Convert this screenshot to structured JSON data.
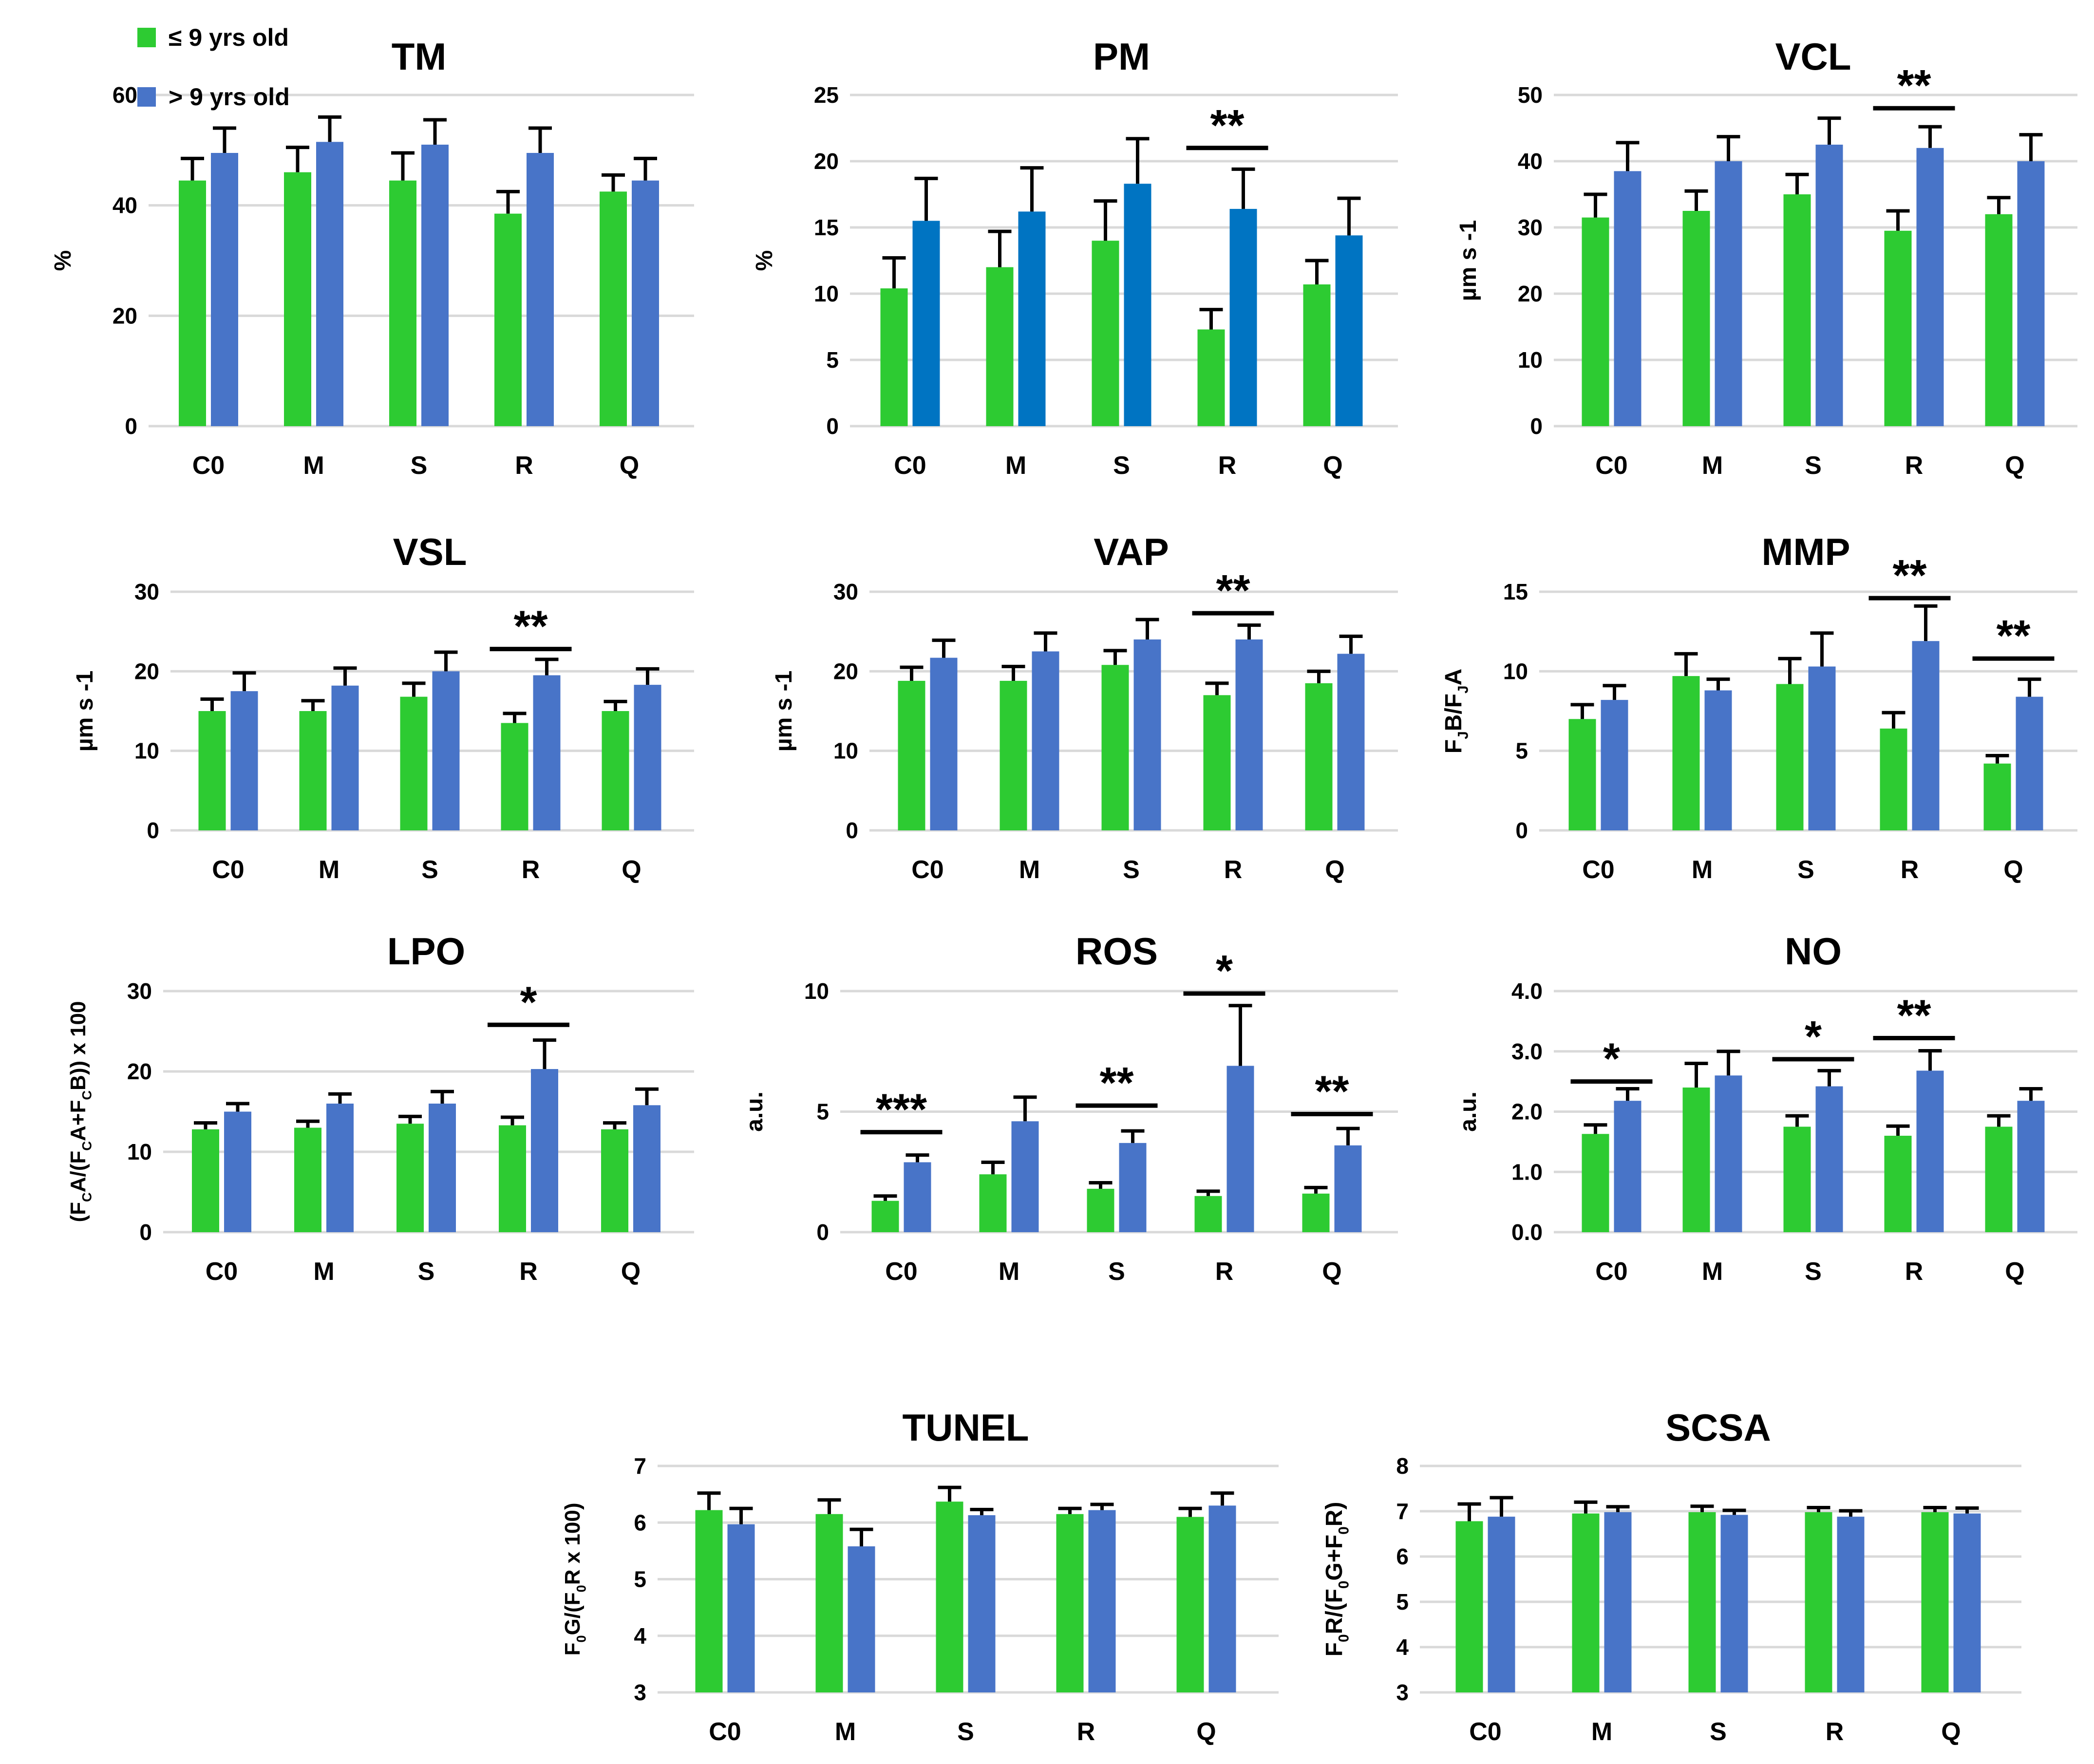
{
  "figure": {
    "background": "#FFFFFF"
  },
  "colors": {
    "green": "#2DCB32",
    "blue": "#4874C8",
    "blue_bright": "#0074C2",
    "gridline": "#D9D9D9",
    "error_bar": "#000000",
    "text": "#000000"
  },
  "legend": {
    "position": "top-left",
    "items": [
      {
        "label": "≤ 9 yrs old",
        "color": "#2DCB32"
      },
      {
        "label": "> 9 yrs old",
        "color": "#4874C8"
      }
    ]
  },
  "categories": [
    "C0",
    "M",
    "S",
    "R",
    "Q"
  ],
  "chart_data": [
    {
      "key": "TM",
      "type": "bar",
      "title": "TM",
      "ylabel": "%",
      "ymin": 0,
      "ymax": 60,
      "grid": true,
      "yticks": [
        {
          "v": 0,
          "label": "0"
        },
        {
          "v": 20,
          "label": "20"
        },
        {
          "v": 40,
          "label": "40"
        },
        {
          "v": 60,
          "label": "60"
        }
      ],
      "categories": [
        "C0",
        "M",
        "S",
        "R",
        "Q"
      ],
      "series": [
        {
          "name": "≤ 9 yrs old",
          "color": "#2DCB32",
          "values": [
            44.5,
            46,
            44.5,
            38.5,
            42.5
          ],
          "errors_up": [
            4,
            4.5,
            5,
            4,
            3
          ]
        },
        {
          "name": "> 9 yrs old",
          "color": "#4874C8",
          "values": [
            49.5,
            51.5,
            51,
            49.5,
            44.5
          ],
          "errors_up": [
            4.5,
            4.5,
            4.5,
            4.5,
            4
          ]
        }
      ],
      "significance": []
    },
    {
      "key": "PM",
      "type": "bar",
      "title": "PM",
      "ylabel": "%",
      "ymin": 0,
      "ymax": 25,
      "grid": true,
      "yticks": [
        {
          "v": 0,
          "label": "0"
        },
        {
          "v": 5,
          "label": "5"
        },
        {
          "v": 10,
          "label": "10"
        },
        {
          "v": 15,
          "label": "15"
        },
        {
          "v": 20,
          "label": "20"
        },
        {
          "v": 25,
          "label": "25"
        }
      ],
      "categories": [
        "C0",
        "M",
        "S",
        "R",
        "Q"
      ],
      "series": [
        {
          "name": "≤ 9 yrs old",
          "color": "#2DCB32",
          "values": [
            10.4,
            12,
            14,
            7.3,
            10.7
          ],
          "errors_up": [
            2.3,
            2.7,
            3,
            1.5,
            1.8
          ]
        },
        {
          "name": "> 9 yrs old",
          "color": "#0074C2",
          "values": [
            15.5,
            16.2,
            18.3,
            16.4,
            14.4
          ],
          "errors_up": [
            3.2,
            3.3,
            3.4,
            3,
            2.8
          ]
        }
      ],
      "significance": [
        {
          "category": "R",
          "symbol": "**",
          "line_y": 21
        }
      ]
    },
    {
      "key": "VCL",
      "type": "bar",
      "title": "VCL",
      "ylabel": "µm s -1",
      "ymin": 0,
      "ymax": 50,
      "grid": true,
      "yticks": [
        {
          "v": 0,
          "label": "0"
        },
        {
          "v": 10,
          "label": "10"
        },
        {
          "v": 20,
          "label": "20"
        },
        {
          "v": 30,
          "label": "30"
        },
        {
          "v": 40,
          "label": "40"
        },
        {
          "v": 50,
          "label": "50"
        }
      ],
      "categories": [
        "C0",
        "M",
        "S",
        "R",
        "Q"
      ],
      "series": [
        {
          "name": "≤ 9 yrs old",
          "color": "#2DCB32",
          "values": [
            31.5,
            32.5,
            35,
            29.5,
            32
          ],
          "errors_up": [
            3.5,
            3,
            3,
            3,
            2.5
          ]
        },
        {
          "name": "> 9 yrs old",
          "color": "#4874C8",
          "values": [
            38.5,
            40,
            42.5,
            42,
            40
          ],
          "errors_up": [
            4.3,
            3.7,
            4,
            3.2,
            4
          ]
        }
      ],
      "significance": [
        {
          "category": "R",
          "symbol": "**",
          "line_y": 48
        }
      ]
    },
    {
      "key": "VSL",
      "type": "bar",
      "title": "VSL",
      "ylabel": "µm s -1",
      "ymin": 0,
      "ymax": 30,
      "grid": true,
      "yticks": [
        {
          "v": 0,
          "label": "0"
        },
        {
          "v": 10,
          "label": "10"
        },
        {
          "v": 20,
          "label": "20"
        },
        {
          "v": 30,
          "label": "30"
        }
      ],
      "categories": [
        "C0",
        "M",
        "S",
        "R",
        "Q"
      ],
      "series": [
        {
          "name": "≤ 9 yrs old",
          "color": "#2DCB32",
          "values": [
            15,
            15,
            16.8,
            13.5,
            15
          ],
          "errors_up": [
            1.5,
            1.3,
            1.7,
            1.2,
            1.2
          ]
        },
        {
          "name": "> 9 yrs old",
          "color": "#4874C8",
          "values": [
            17.5,
            18.2,
            20,
            19.5,
            18.3
          ],
          "errors_up": [
            2.3,
            2.2,
            2.4,
            2,
            2
          ]
        }
      ],
      "significance": [
        {
          "category": "R",
          "symbol": "**",
          "line_y": 22.8
        }
      ]
    },
    {
      "key": "VAP",
      "type": "bar",
      "title": "VAP",
      "ylabel": "µm s -1",
      "ymin": 0,
      "ymax": 30,
      "grid": true,
      "yticks": [
        {
          "v": 0,
          "label": "0"
        },
        {
          "v": 10,
          "label": "10"
        },
        {
          "v": 20,
          "label": "20"
        },
        {
          "v": 30,
          "label": "30"
        }
      ],
      "categories": [
        "C0",
        "M",
        "S",
        "R",
        "Q"
      ],
      "series": [
        {
          "name": "≤ 9 yrs old",
          "color": "#2DCB32",
          "values": [
            18.8,
            18.8,
            20.8,
            17,
            18.5
          ],
          "errors_up": [
            1.7,
            1.8,
            1.8,
            1.5,
            1.5
          ]
        },
        {
          "name": "> 9 yrs old",
          "color": "#4874C8",
          "values": [
            21.7,
            22.5,
            24,
            24,
            22.2
          ],
          "errors_up": [
            2.2,
            2.3,
            2.5,
            1.8,
            2.2
          ]
        }
      ],
      "significance": [
        {
          "category": "R",
          "symbol": "**",
          "line_y": 27.3
        }
      ]
    },
    {
      "key": "MMP",
      "type": "bar",
      "title": "MMP",
      "ylabel": "F_JB/F_JA",
      "ymin": 0,
      "ymax": 15,
      "grid": true,
      "yticks": [
        {
          "v": 0,
          "label": "0"
        },
        {
          "v": 5,
          "label": "5"
        },
        {
          "v": 10,
          "label": "10"
        },
        {
          "v": 15,
          "label": "15"
        }
      ],
      "categories": [
        "C0",
        "M",
        "S",
        "R",
        "Q"
      ],
      "series": [
        {
          "name": "≤ 9 yrs old",
          "color": "#2DCB32",
          "values": [
            7,
            9.7,
            9.2,
            6.4,
            4.2
          ],
          "errors_up": [
            0.9,
            1.4,
            1.6,
            1,
            0.5
          ]
        },
        {
          "name": "> 9 yrs old",
          "color": "#4874C8",
          "values": [
            8.2,
            8.8,
            10.3,
            11.9,
            8.4
          ],
          "errors_up": [
            0.9,
            0.7,
            2.1,
            2.2,
            1.1
          ]
        }
      ],
      "significance": [
        {
          "category": "R",
          "symbol": "**",
          "line_y": 14.6
        },
        {
          "category": "Q",
          "symbol": "**",
          "line_y": 10.8
        }
      ]
    },
    {
      "key": "LPO",
      "type": "bar",
      "title": "LPO",
      "ylabel": "(F_CA/(F_CA+F_CB)) x 100",
      "ymin": 0,
      "ymax": 30,
      "grid": true,
      "yticks": [
        {
          "v": 0,
          "label": "0"
        },
        {
          "v": 10,
          "label": "10"
        },
        {
          "v": 20,
          "label": "20"
        },
        {
          "v": 30,
          "label": "30"
        }
      ],
      "categories": [
        "C0",
        "M",
        "S",
        "R",
        "Q"
      ],
      "series": [
        {
          "name": "≤ 9 yrs old",
          "color": "#2DCB32",
          "values": [
            12.8,
            13,
            13.5,
            13.3,
            12.8
          ],
          "errors_up": [
            0.8,
            0.8,
            0.9,
            1,
            0.8
          ]
        },
        {
          "name": "> 9 yrs old",
          "color": "#4874C8",
          "values": [
            15,
            16,
            16,
            20.3,
            15.8
          ],
          "errors_up": [
            1,
            1.2,
            1.5,
            3.6,
            2
          ]
        }
      ],
      "significance": [
        {
          "category": "R",
          "symbol": "*",
          "line_y": 25.8
        }
      ]
    },
    {
      "key": "ROS",
      "type": "bar",
      "title": "ROS",
      "ylabel": "a.u.",
      "ymin": 0,
      "ymax": 10,
      "grid": true,
      "yticks": [
        {
          "v": 0,
          "label": "0"
        },
        {
          "v": 5,
          "label": "5"
        },
        {
          "v": 10,
          "label": "10"
        }
      ],
      "categories": [
        "C0",
        "M",
        "S",
        "R",
        "Q"
      ],
      "series": [
        {
          "name": "≤ 9 yrs old",
          "color": "#2DCB32",
          "values": [
            1.3,
            2.4,
            1.8,
            1.5,
            1.6
          ],
          "errors_up": [
            0.2,
            0.5,
            0.25,
            0.2,
            0.25
          ]
        },
        {
          "name": "> 9 yrs old",
          "color": "#4874C8",
          "values": [
            2.9,
            4.6,
            3.7,
            6.9,
            3.6
          ],
          "errors_up": [
            0.3,
            1,
            0.5,
            2.5,
            0.7
          ]
        }
      ],
      "significance": [
        {
          "category": "C0",
          "symbol": "***",
          "line_y": 4.15
        },
        {
          "category": "S",
          "symbol": "**",
          "line_y": 5.25
        },
        {
          "category": "R",
          "symbol": "*",
          "line_y": 9.9
        },
        {
          "category": "Q",
          "symbol": "**",
          "line_y": 4.9
        }
      ]
    },
    {
      "key": "NO",
      "type": "bar",
      "title": "NO",
      "ylabel": "a.u.",
      "ymin": 0,
      "ymax": 4,
      "grid": true,
      "yticks": [
        {
          "v": 0,
          "label": "0.0"
        },
        {
          "v": 1,
          "label": "1.0"
        },
        {
          "v": 2,
          "label": "2.0"
        },
        {
          "v": 3,
          "label": "3.0"
        },
        {
          "v": 4,
          "label": "4.0"
        }
      ],
      "categories": [
        "C0",
        "M",
        "S",
        "R",
        "Q"
      ],
      "series": [
        {
          "name": "≤ 9 yrs old",
          "color": "#2DCB32",
          "values": [
            1.63,
            2.4,
            1.75,
            1.6,
            1.75
          ],
          "errors_up": [
            0.15,
            0.4,
            0.18,
            0.16,
            0.18
          ]
        },
        {
          "name": "> 9 yrs old",
          "color": "#4874C8",
          "values": [
            2.18,
            2.6,
            2.42,
            2.68,
            2.18
          ],
          "errors_up": [
            0.2,
            0.4,
            0.26,
            0.33,
            0.2
          ]
        }
      ],
      "significance": [
        {
          "category": "C0",
          "symbol": "*",
          "line_y": 2.5
        },
        {
          "category": "S",
          "symbol": "*",
          "line_y": 2.87
        },
        {
          "category": "R",
          "symbol": "**",
          "line_y": 3.22
        }
      ]
    },
    {
      "key": "TUNEL",
      "type": "bar",
      "title": "TUNEL",
      "ylabel": "F_0G/(F_0R x 100)",
      "ymin": 3,
      "ymax": 7,
      "grid": true,
      "yticks": [
        {
          "v": 3,
          "label": "3"
        },
        {
          "v": 4,
          "label": "4"
        },
        {
          "v": 5,
          "label": "5"
        },
        {
          "v": 6,
          "label": "6"
        },
        {
          "v": 7,
          "label": "7"
        }
      ],
      "categories": [
        "C0",
        "M",
        "S",
        "R",
        "Q"
      ],
      "series": [
        {
          "name": "≤ 9 yrs old",
          "color": "#2DCB32",
          "values": [
            6.22,
            6.15,
            6.37,
            6.15,
            6.1
          ],
          "errors_up": [
            0.3,
            0.25,
            0.25,
            0.1,
            0.15
          ]
        },
        {
          "name": "> 9 yrs old",
          "color": "#4874C8",
          "values": [
            5.97,
            5.58,
            6.13,
            6.22,
            6.3
          ],
          "errors_up": [
            0.28,
            0.3,
            0.1,
            0.1,
            0.22
          ]
        }
      ],
      "significance": []
    },
    {
      "key": "SCSA",
      "type": "bar",
      "title": "SCSA",
      "ylabel": "F_0R/(F_0G+F_0R)",
      "ymin": 3,
      "ymax": 8,
      "grid": true,
      "yticks": [
        {
          "v": 3,
          "label": "3"
        },
        {
          "v": 4,
          "label": "4"
        },
        {
          "v": 5,
          "label": "5"
        },
        {
          "v": 6,
          "label": "6"
        },
        {
          "v": 7,
          "label": "7"
        },
        {
          "v": 8,
          "label": "8"
        }
      ],
      "categories": [
        "C0",
        "M",
        "S",
        "R",
        "Q"
      ],
      "series": [
        {
          "name": "≤ 9 yrs old",
          "color": "#2DCB32",
          "values": [
            6.78,
            6.95,
            6.98,
            6.98,
            6.98
          ],
          "errors_up": [
            0.38,
            0.25,
            0.13,
            0.1,
            0.1
          ]
        },
        {
          "name": "> 9 yrs old",
          "color": "#4874C8",
          "values": [
            6.88,
            6.98,
            6.92,
            6.88,
            6.95
          ],
          "errors_up": [
            0.42,
            0.12,
            0.1,
            0.13,
            0.12
          ]
        }
      ],
      "significance": []
    }
  ]
}
